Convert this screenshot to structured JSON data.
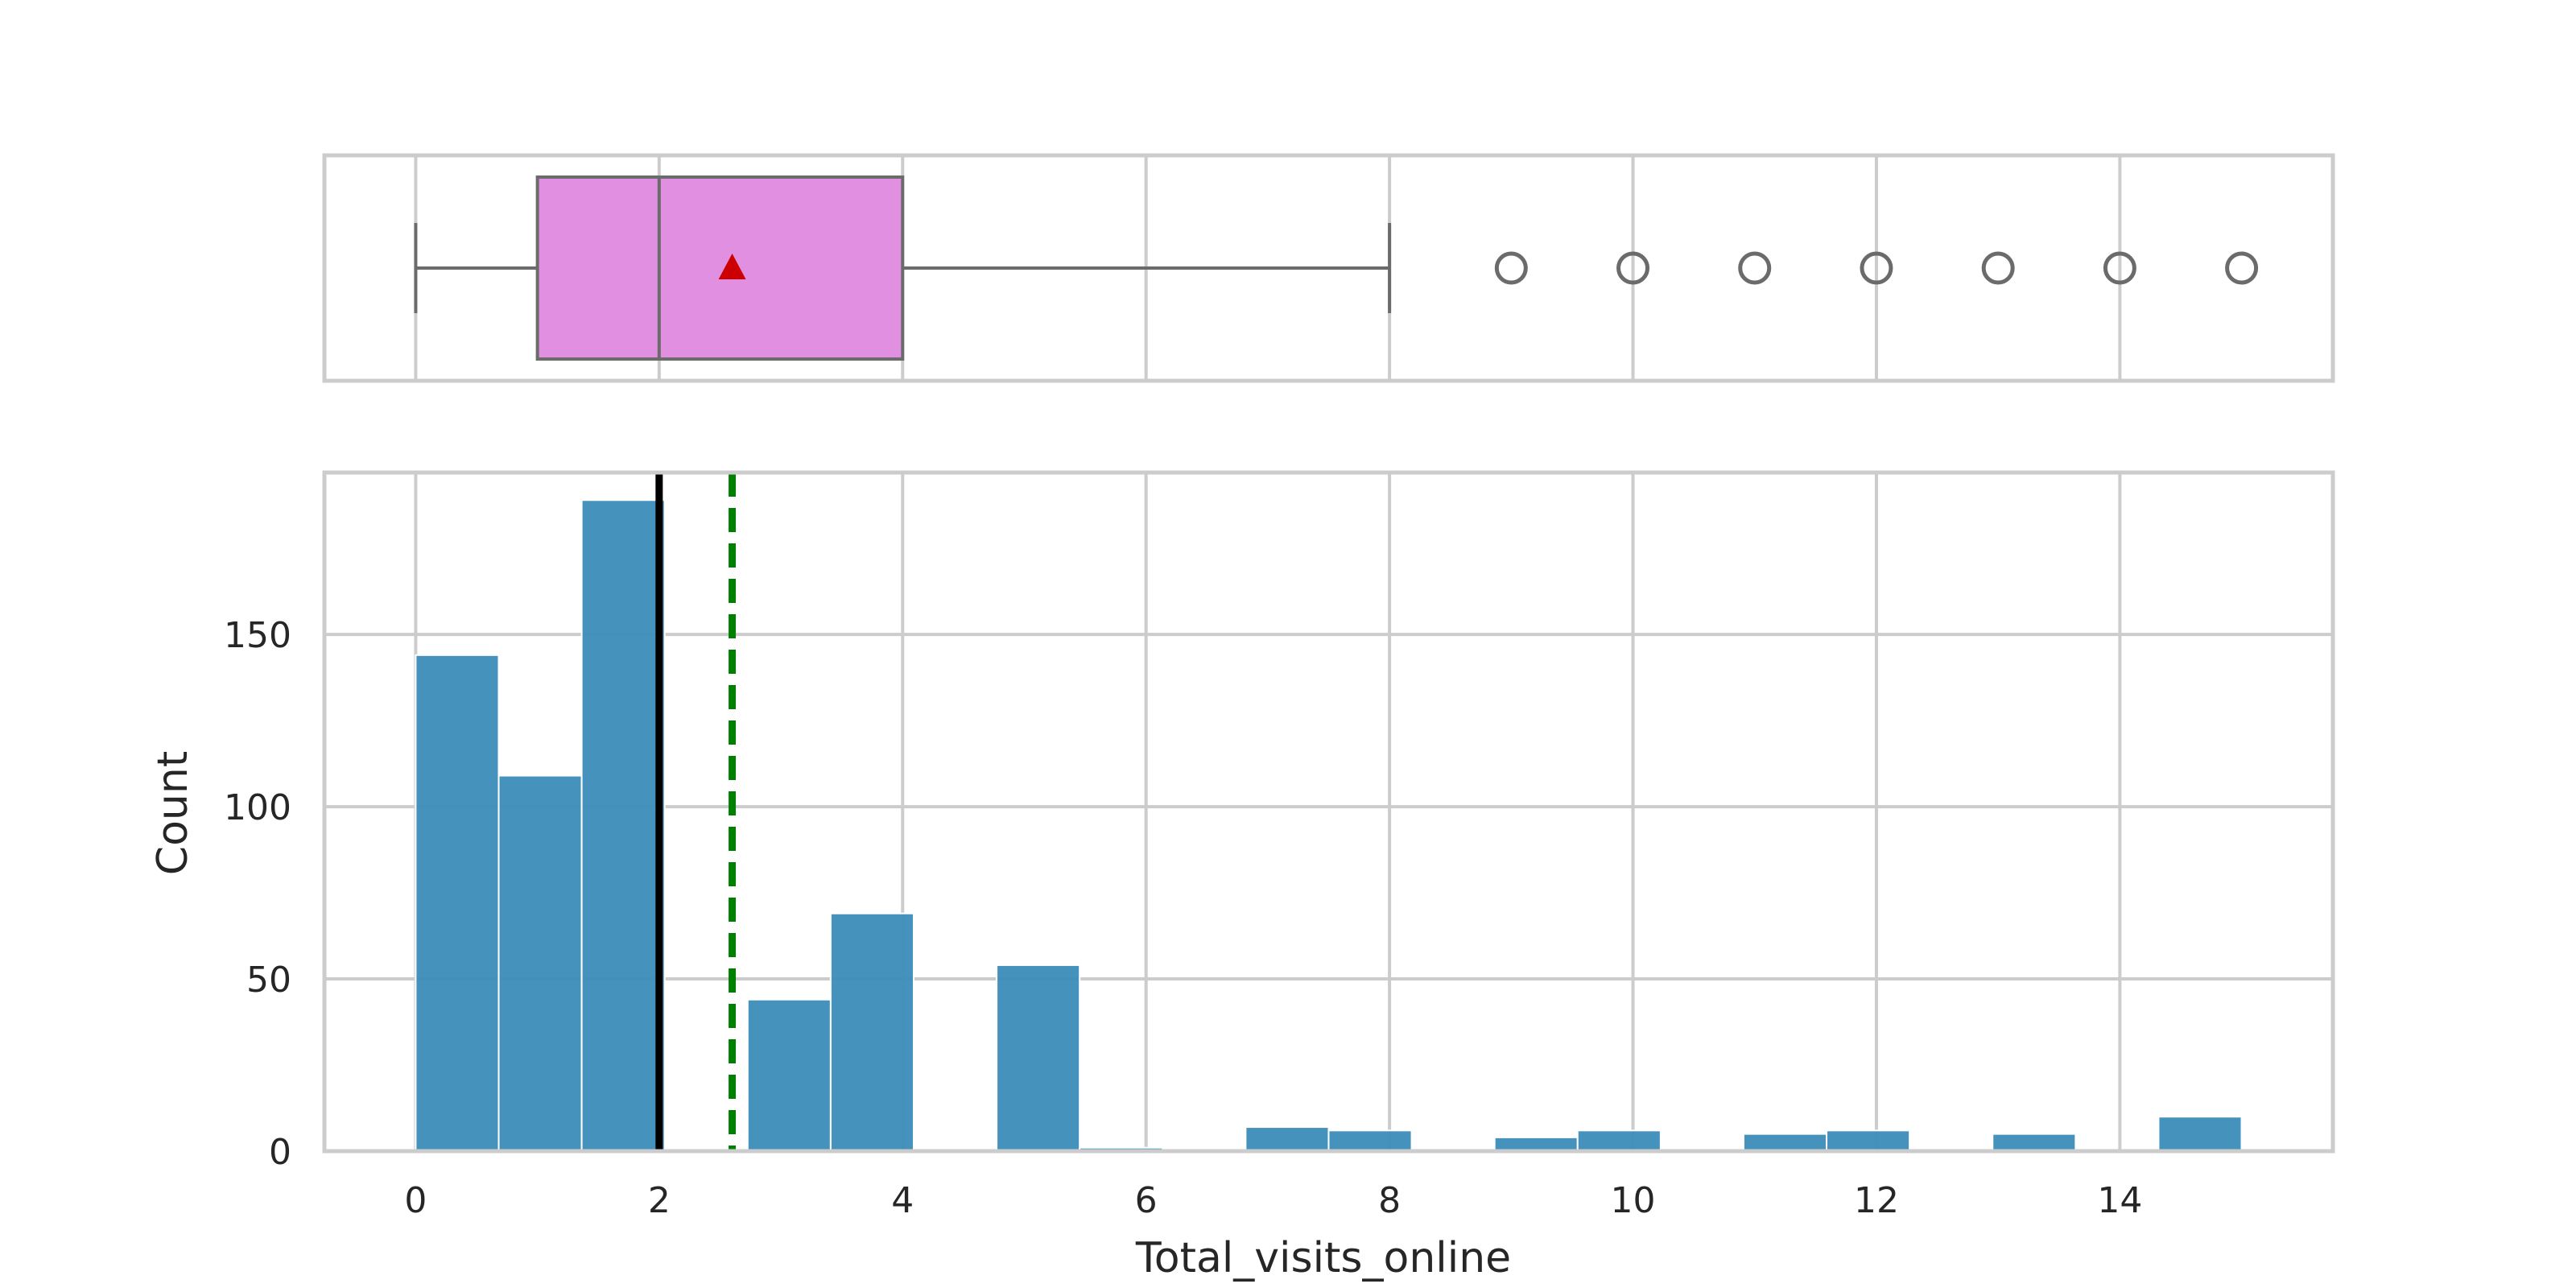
{
  "chart_data": [
    {
      "type": "boxplot",
      "orientation": "horizontal",
      "xlim": [
        -0.75,
        15.75
      ],
      "xticks": [
        0,
        2,
        4,
        6,
        8,
        10,
        12,
        14
      ],
      "grid": true,
      "box": {
        "whisker_low": 0,
        "q1": 1,
        "median": 2,
        "q3": 4,
        "whisker_high": 8,
        "mean": 2.6
      },
      "outliers": [
        9,
        10,
        11,
        12,
        13,
        14,
        15
      ],
      "colors": {
        "box_fill": "#e18fe1",
        "line": "#6b6b6b",
        "mean_marker": "#cc0000",
        "grid": "#cccccc"
      }
    },
    {
      "type": "histogram",
      "title": "",
      "xlabel": "Total_visits_online",
      "ylabel": "Count",
      "xlim": [
        -0.75,
        15.75
      ],
      "ylim": [
        0,
        197
      ],
      "xticks": [
        0,
        2,
        4,
        6,
        8,
        10,
        12,
        14
      ],
      "yticks": [
        0,
        50,
        100,
        150
      ],
      "tick_labels_x": [
        "0",
        "2",
        "4",
        "6",
        "8",
        "10",
        "12",
        "14"
      ],
      "tick_labels_y": [
        "0",
        "50",
        "100",
        "150"
      ],
      "bin_width": 0.6818,
      "bin_edges_start": 0,
      "counts": [
        144,
        109,
        189,
        0,
        44,
        69,
        0,
        54,
        1,
        0,
        7,
        6,
        0,
        4,
        6,
        0,
        5,
        6,
        0,
        5,
        0,
        10
      ],
      "median_line": 2,
      "mean_line": 2.6,
      "grid": true,
      "colors": {
        "bar": "#3b8db8",
        "median": "#000000",
        "mean": "#008000",
        "grid": "#cccccc"
      }
    }
  ]
}
